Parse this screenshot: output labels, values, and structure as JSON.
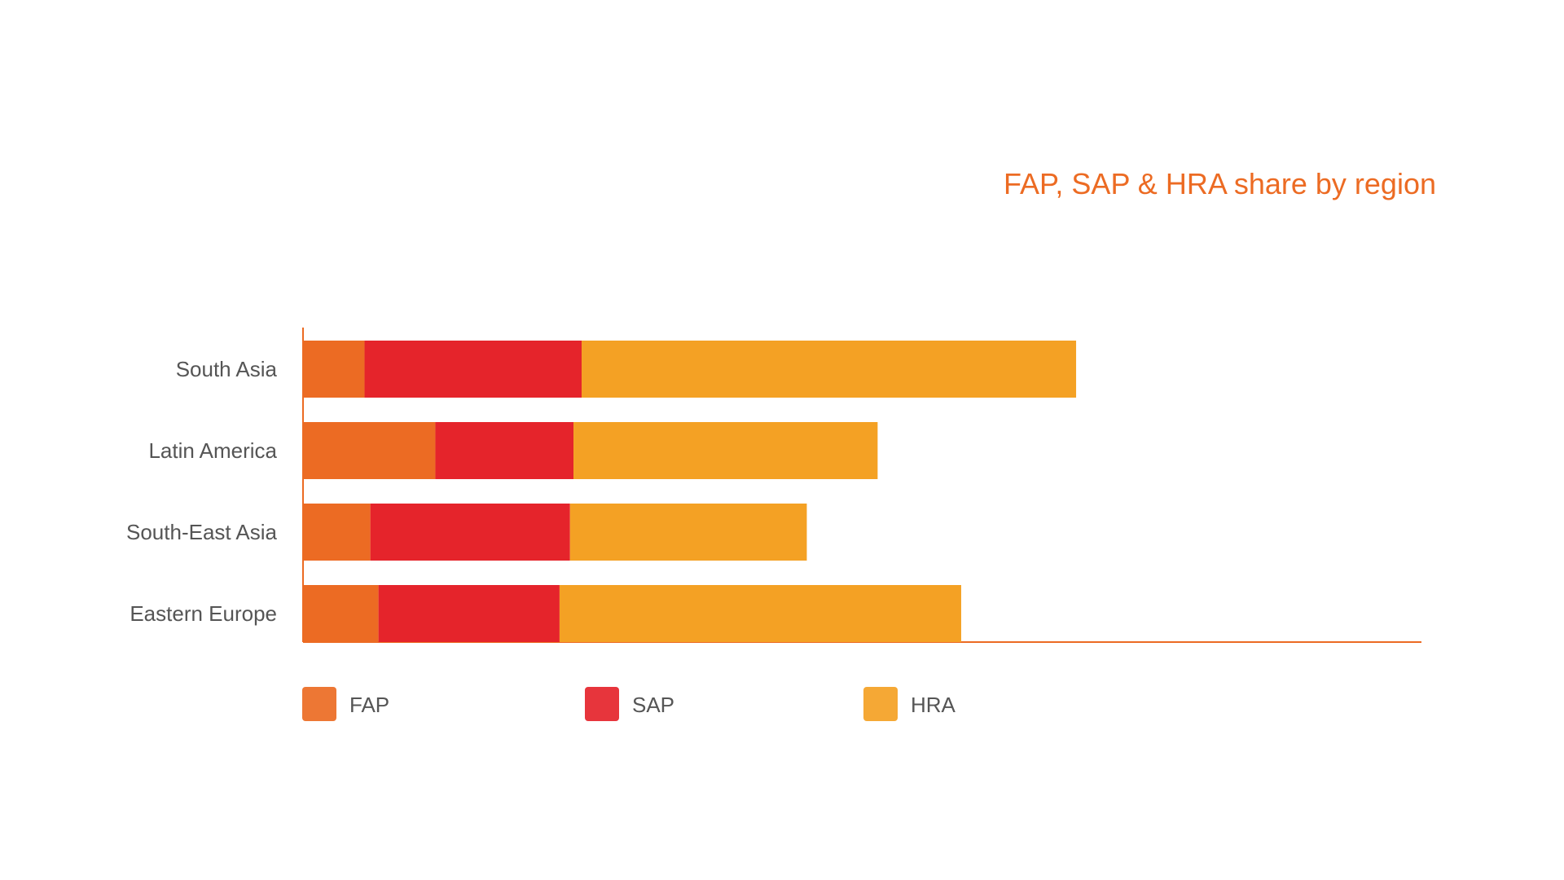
{
  "chart_data": {
    "type": "bar",
    "orientation": "horizontal",
    "stacked": true,
    "title": "FAP, SAP & HRA share by region",
    "categories": [
      "South Asia",
      "Latin America",
      "South-East Asia",
      "Eastern Europe"
    ],
    "series": [
      {
        "name": "FAP",
        "values": [
          5.3,
          11.4,
          5.8,
          6.5
        ],
        "color": "#ec6b23"
      },
      {
        "name": "SAP",
        "values": [
          18.7,
          11.9,
          17.2,
          15.6
        ],
        "color": "#e5242b"
      },
      {
        "name": "HRA",
        "values": [
          42.6,
          26.2,
          20.4,
          34.6
        ],
        "color": "#f4a124"
      }
    ],
    "xlim": [
      0,
      80
    ],
    "xaxis_labels_shown": false,
    "grid": false,
    "legend_position": "bottom",
    "axis_color": "#ec6b23",
    "title_color": "#ec6b23"
  }
}
